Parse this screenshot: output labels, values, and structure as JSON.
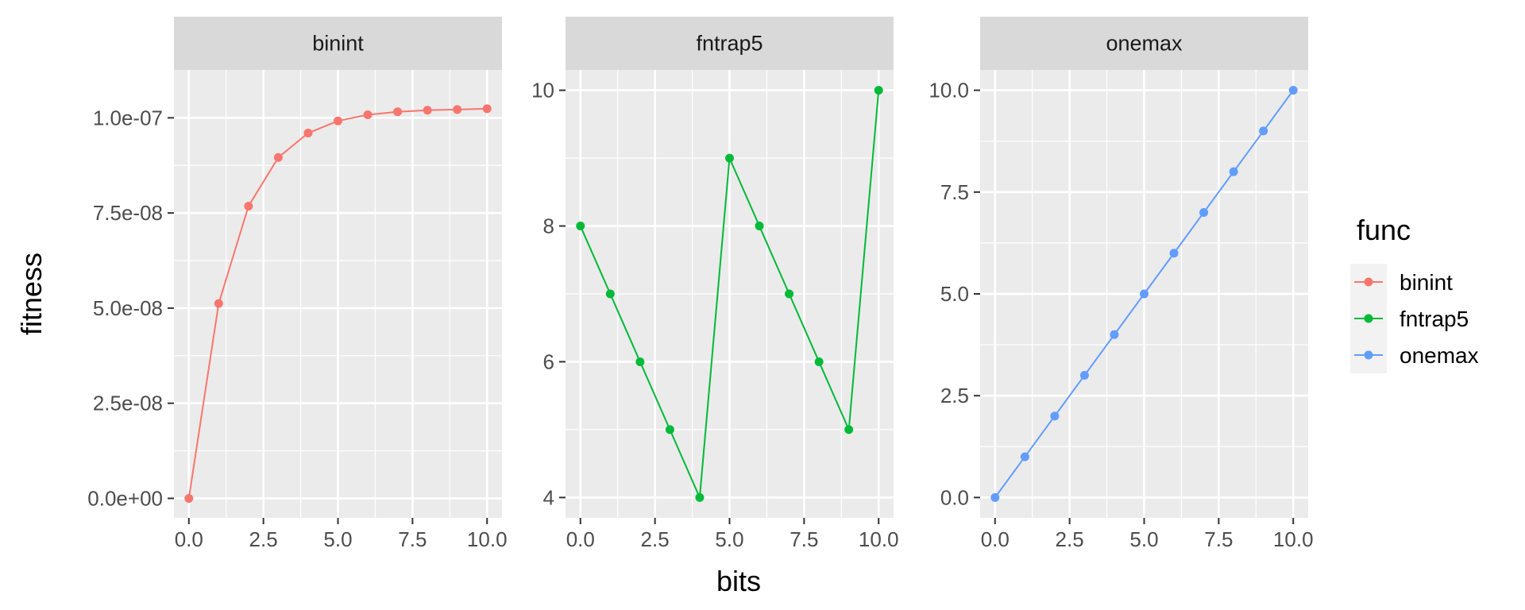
{
  "chart_data": {
    "type": "line",
    "xlabel": "bits",
    "ylabel": "fitness",
    "legend": {
      "title": "func",
      "placement": "right"
    },
    "grid": true,
    "colors": {
      "binint": "#F8766D",
      "fntrap5": "#00BA38",
      "onemax": "#619CFF",
      "panel_bg": "#EBEBEB",
      "strip_bg": "#D9D9D9",
      "grid": "#FFFFFF"
    },
    "x": [
      0,
      1,
      2,
      3,
      4,
      5,
      6,
      7,
      8,
      9,
      10
    ],
    "panels": [
      {
        "name": "binint",
        "xlim": [
          -0.5,
          10.5
        ],
        "ylim": [
          -5.12e-09,
          1.126e-07
        ],
        "xticks": [
          0,
          2.5,
          5,
          7.5,
          10
        ],
        "xtick_labels": [
          "0.0",
          "2.5",
          "5.0",
          "7.5",
          "10.0"
        ],
        "yticks": [
          0,
          2.5e-08,
          5e-08,
          7.5e-08,
          1e-07
        ],
        "ytick_labels": [
          "0.0e+00",
          "2.5e-08",
          "5.0e-08",
          "7.5e-08",
          "1.0e-07"
        ],
        "values": [
          0,
          5.12e-08,
          7.68e-08,
          8.96e-08,
          9.6e-08,
          9.92e-08,
          1.008e-07,
          1.016e-07,
          1.02e-07,
          1.022e-07,
          1.024e-07
        ]
      },
      {
        "name": "fntrap5",
        "xlim": [
          -0.5,
          10.5
        ],
        "ylim": [
          3.7,
          10.3
        ],
        "xticks": [
          0,
          2.5,
          5,
          7.5,
          10
        ],
        "xtick_labels": [
          "0.0",
          "2.5",
          "5.0",
          "7.5",
          "10.0"
        ],
        "yticks": [
          4,
          6,
          8,
          10
        ],
        "ytick_labels": [
          "4",
          "6",
          "8",
          "10"
        ],
        "values": [
          8,
          7,
          6,
          5,
          4,
          9,
          8,
          7,
          6,
          5,
          10
        ]
      },
      {
        "name": "onemax",
        "xlim": [
          -0.5,
          10.5
        ],
        "ylim": [
          -0.5,
          10.5
        ],
        "xticks": [
          0,
          2.5,
          5,
          7.5,
          10
        ],
        "xtick_labels": [
          "0.0",
          "2.5",
          "5.0",
          "7.5",
          "10.0"
        ],
        "yticks": [
          0,
          2.5,
          5,
          7.5,
          10
        ],
        "ytick_labels": [
          "0.0",
          "2.5",
          "5.0",
          "7.5",
          "10.0"
        ],
        "values": [
          0,
          1,
          2,
          3,
          4,
          5,
          6,
          7,
          8,
          9,
          10
        ]
      }
    ]
  }
}
